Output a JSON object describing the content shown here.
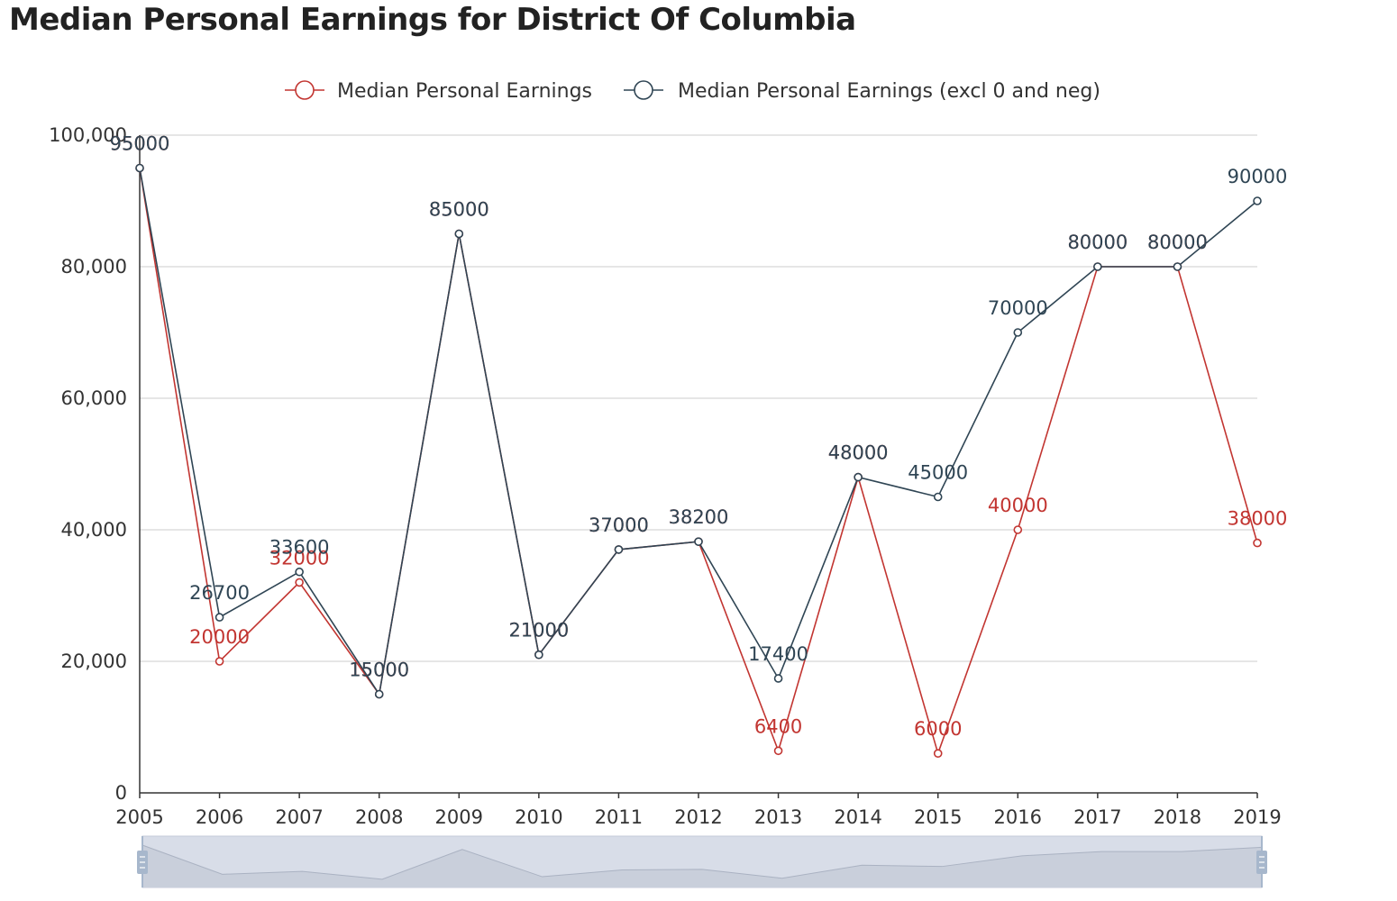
{
  "title": "Median Personal Earnings for District Of Columbia",
  "chart_data": {
    "type": "line",
    "title": "Median Personal Earnings for District Of Columbia",
    "xlabel": "",
    "ylabel": "",
    "x": [
      "2005",
      "2006",
      "2007",
      "2008",
      "2009",
      "2010",
      "2011",
      "2012",
      "2013",
      "2014",
      "2015",
      "2016",
      "2017",
      "2018",
      "2019"
    ],
    "ylim": [
      0,
      100000
    ],
    "yticks": [
      0,
      20000,
      40000,
      60000,
      80000,
      100000
    ],
    "ytick_labels": [
      "0",
      "20,000",
      "40,000",
      "60,000",
      "80,000",
      "100,000"
    ],
    "grid": "horizontal",
    "legend_position": "top-center",
    "series": [
      {
        "name": "Median Personal Earnings",
        "color": "#c23531",
        "values": [
          95000,
          20000,
          32000,
          15000,
          85000,
          21000,
          37000,
          38200,
          6400,
          48000,
          6000,
          40000,
          80000,
          80000,
          38000
        ]
      },
      {
        "name": "Median Personal Earnings (excl 0 and neg)",
        "color": "#2f4554",
        "values": [
          95000,
          26700,
          33600,
          15000,
          85000,
          21000,
          37000,
          38200,
          17400,
          48000,
          45000,
          70000,
          80000,
          80000,
          90000
        ]
      }
    ],
    "data_zoom": {
      "start_percent": 0,
      "end_percent": 100
    }
  }
}
